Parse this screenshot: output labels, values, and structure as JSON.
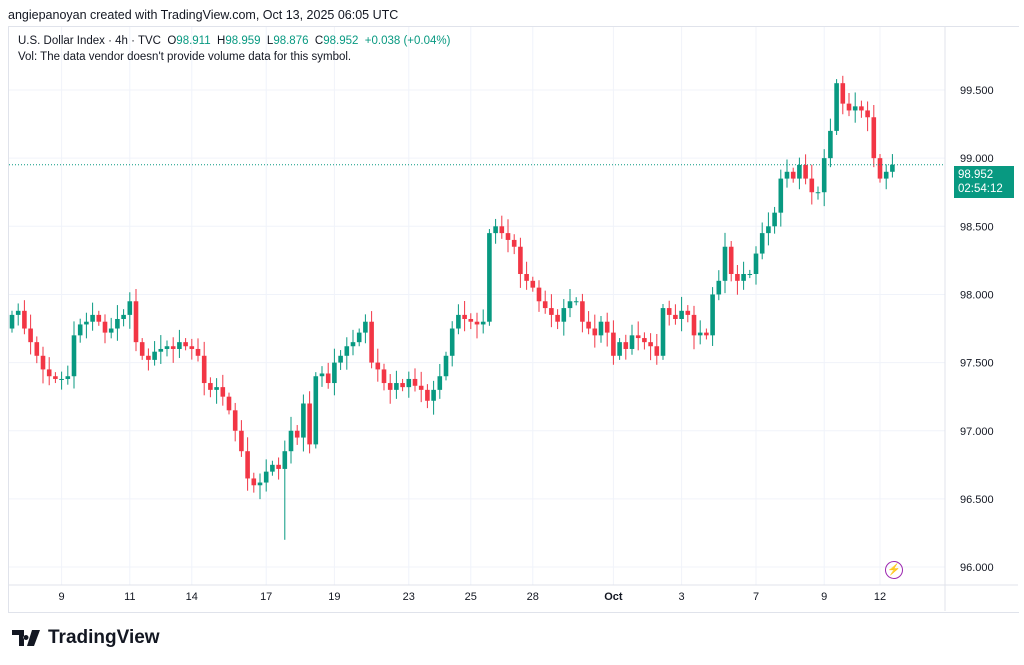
{
  "credit": "angiepanoyan created with TradingView.com, Oct 13, 2025 06:05 UTC",
  "legend": {
    "symbol": "U.S. Dollar Index · 4h · TVC",
    "o_label": "O",
    "o": "98.911",
    "h_label": "H",
    "h": "98.959",
    "l_label": "L",
    "l": "98.876",
    "c_label": "C",
    "c": "98.952",
    "change": "+0.038 (+0.04%)",
    "vol": "Vol: The data vendor doesn't provide volume data for this symbol."
  },
  "price_label": {
    "price": "98.952",
    "countdown": "02:54:12"
  },
  "logo": "TradingView",
  "colors": {
    "up": "#089981",
    "down": "#f23645",
    "line": "#089981"
  },
  "chart_data": {
    "type": "candlestick",
    "title": "U.S. Dollar Index · 4h · TVC",
    "ylim": [
      96.0,
      99.6
    ],
    "y_ticks": [
      "99.500",
      "99.000",
      "98.500",
      "98.000",
      "97.500",
      "97.000",
      "96.500",
      "96.000"
    ],
    "y_tick_values": [
      99.5,
      99.0,
      98.5,
      98.0,
      97.5,
      97.0,
      96.5,
      96.0
    ],
    "x_ticks": [
      {
        "label": "9",
        "index": 8
      },
      {
        "label": "11",
        "index": 19
      },
      {
        "label": "14",
        "index": 29
      },
      {
        "label": "17",
        "index": 41
      },
      {
        "label": "19",
        "index": 52
      },
      {
        "label": "23",
        "index": 64
      },
      {
        "label": "25",
        "index": 74
      },
      {
        "label": "28",
        "index": 84
      },
      {
        "label": "Oct",
        "index": 97,
        "bold": true
      },
      {
        "label": "3",
        "index": 108
      },
      {
        "label": "7",
        "index": 120
      },
      {
        "label": "9",
        "index": 131
      },
      {
        "label": "12",
        "index": 140
      }
    ],
    "first_open": 97.75,
    "closes": [
      97.85,
      97.88,
      97.75,
      97.65,
      97.55,
      97.45,
      97.4,
      97.38,
      97.38,
      97.4,
      97.7,
      97.78,
      97.8,
      97.85,
      97.8,
      97.72,
      97.75,
      97.82,
      97.85,
      97.95,
      97.65,
      97.55,
      97.52,
      97.58,
      97.6,
      97.62,
      97.6,
      97.65,
      97.62,
      97.6,
      97.55,
      97.35,
      97.3,
      97.32,
      97.25,
      97.15,
      97.0,
      96.85,
      96.65,
      96.6,
      96.62,
      96.7,
      96.75,
      96.72,
      96.85,
      97.0,
      96.95,
      97.2,
      96.9,
      97.4,
      97.42,
      97.35,
      97.5,
      97.55,
      97.62,
      97.65,
      97.72,
      97.8,
      97.5,
      97.45,
      97.35,
      97.3,
      97.35,
      97.32,
      97.38,
      97.33,
      97.3,
      97.22,
      97.3,
      97.4,
      97.55,
      97.75,
      97.85,
      97.82,
      97.8,
      97.78,
      97.8,
      98.45,
      98.5,
      98.45,
      98.4,
      98.35,
      98.15,
      98.1,
      98.05,
      97.95,
      97.9,
      97.85,
      97.8,
      97.9,
      97.95,
      97.95,
      97.8,
      97.75,
      97.7,
      97.8,
      97.72,
      97.55,
      97.65,
      97.6,
      97.7,
      97.68,
      97.65,
      97.62,
      97.55,
      97.9,
      97.85,
      97.82,
      97.88,
      97.85,
      97.7,
      97.72,
      97.7,
      98.0,
      98.1,
      98.35,
      98.15,
      98.1,
      98.15,
      98.15,
      98.3,
      98.45,
      98.5,
      98.6,
      98.85,
      98.9,
      98.85,
      98.95,
      98.85,
      98.75,
      98.75,
      99.0,
      99.2,
      99.55,
      99.4,
      99.35,
      99.38,
      99.35,
      99.3,
      99.0,
      98.85,
      98.9,
      98.952
    ],
    "last_price": 98.952
  }
}
